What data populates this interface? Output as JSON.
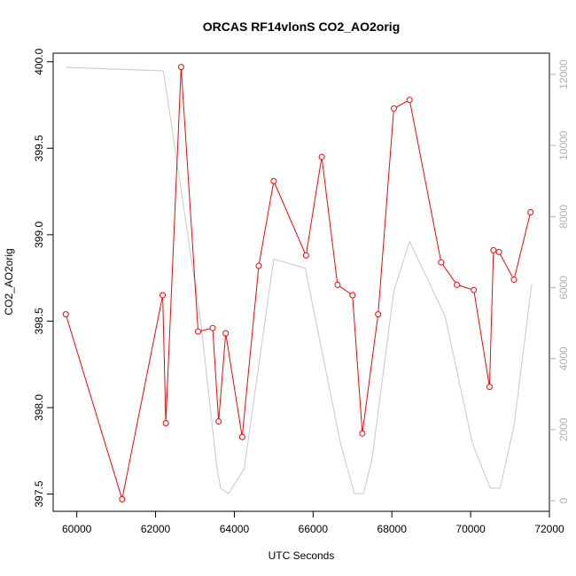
{
  "chart_data": {
    "type": "line",
    "title": "ORCAS RF14vlonS CO2_AO2orig",
    "xlabel": "UTC Seconds",
    "ylabel": "CO2_AO2orig",
    "xlim": [
      59400,
      72000
    ],
    "ylim": [
      397.4,
      400.05
    ],
    "y2lim": [
      -300,
      12600
    ],
    "x_ticks": [
      60000,
      62000,
      64000,
      66000,
      68000,
      70000,
      72000
    ],
    "y_ticks": [
      397.5,
      398.0,
      398.5,
      399.0,
      399.5,
      400.0
    ],
    "y_tick_labels": [
      "397.5",
      "398.0",
      "398.5",
      "399.0",
      "399.5",
      "400.0"
    ],
    "y2_ticks": [
      0,
      2000,
      4000,
      6000,
      8000,
      10000,
      12000
    ],
    "grid": false,
    "series": [
      {
        "color": "#ff0000",
        "marker": "open-circle",
        "axis": "left",
        "points": [
          [
            59720,
            398.54
          ],
          [
            61150,
            397.47
          ],
          [
            62180,
            398.65
          ],
          [
            62260,
            397.91
          ],
          [
            62650,
            399.97
          ],
          [
            63080,
            398.44
          ],
          [
            63450,
            398.46
          ],
          [
            63600,
            397.92
          ],
          [
            63780,
            398.43
          ],
          [
            64200,
            397.83
          ],
          [
            64620,
            398.82
          ],
          [
            65000,
            399.31
          ],
          [
            65820,
            398.88
          ],
          [
            66220,
            399.45
          ],
          [
            66620,
            398.71
          ],
          [
            67000,
            398.65
          ],
          [
            67250,
            397.85
          ],
          [
            67650,
            398.54
          ],
          [
            68050,
            399.73
          ],
          [
            68450,
            399.78
          ],
          [
            69250,
            398.84
          ],
          [
            69650,
            398.71
          ],
          [
            70080,
            398.68
          ],
          [
            70480,
            398.12
          ],
          [
            70580,
            398.91
          ],
          [
            70720,
            398.9
          ],
          [
            71100,
            398.74
          ],
          [
            71520,
            399.13
          ]
        ]
      },
      {
        "color": "#c8c8c8",
        "marker": "none",
        "axis": "right",
        "points": [
          [
            59720,
            12200
          ],
          [
            62200,
            12100
          ],
          [
            63150,
            5000
          ],
          [
            63550,
            1000
          ],
          [
            63650,
            350
          ],
          [
            63850,
            200
          ],
          [
            64250,
            900
          ],
          [
            65000,
            6800
          ],
          [
            65800,
            6550
          ],
          [
            66700,
            1600
          ],
          [
            67050,
            200
          ],
          [
            67280,
            200
          ],
          [
            67500,
            1200
          ],
          [
            68050,
            5900
          ],
          [
            68450,
            7300
          ],
          [
            69350,
            5200
          ],
          [
            70050,
            1600
          ],
          [
            70500,
            350
          ],
          [
            70750,
            350
          ],
          [
            71100,
            2100
          ],
          [
            71550,
            6100
          ]
        ]
      }
    ]
  }
}
